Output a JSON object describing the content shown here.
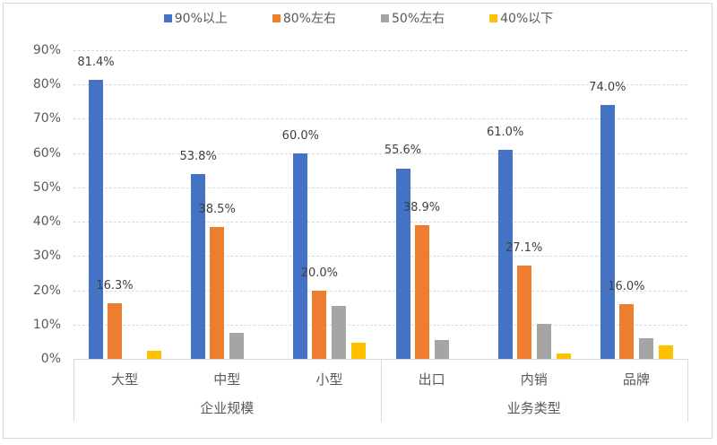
{
  "chart_data": {
    "type": "bar",
    "title": "",
    "xlabel": "",
    "ylabel": "",
    "ylim": [
      0,
      90
    ],
    "yticks": [
      "0%",
      "10%",
      "20%",
      "30%",
      "40%",
      "50%",
      "60%",
      "70%",
      "80%",
      "90%"
    ],
    "grid": true,
    "legend_position": "top",
    "categories": [
      "大型",
      "中型",
      "小型",
      "出口",
      "内销",
      "品牌"
    ],
    "category_groups": [
      {
        "label": "企业规模",
        "categories": [
          "大型",
          "中型",
          "小型"
        ]
      },
      {
        "label": "业务类型",
        "categories": [
          "出口",
          "内销",
          "品牌"
        ]
      }
    ],
    "series": [
      {
        "name": "90%以上",
        "color": "#4472C4",
        "values": [
          81.4,
          53.8,
          60.0,
          55.6,
          61.0,
          74.0
        ],
        "labels": [
          "81.4%",
          "53.8%",
          "60.0%",
          "55.6%",
          "61.0%",
          "74.0%"
        ]
      },
      {
        "name": "80%左右",
        "color": "#ED7D31",
        "values": [
          16.3,
          38.5,
          20.0,
          38.9,
          27.1,
          16.0
        ],
        "labels": [
          "16.3%",
          "38.5%",
          "20.0%",
          "38.9%",
          "27.1%",
          "16.0%"
        ]
      },
      {
        "name": "50%左右",
        "color": "#A5A5A5",
        "values": [
          0,
          7.7,
          15.4,
          5.6,
          10.2,
          6.0
        ],
        "labels": [
          "",
          "",
          "",
          "",
          "",
          ""
        ]
      },
      {
        "name": "40%以下",
        "color": "#FFC000",
        "values": [
          2.3,
          0,
          4.6,
          0,
          1.7,
          4.0
        ],
        "labels": [
          "",
          "",
          "",
          "",
          "",
          ""
        ]
      }
    ]
  }
}
